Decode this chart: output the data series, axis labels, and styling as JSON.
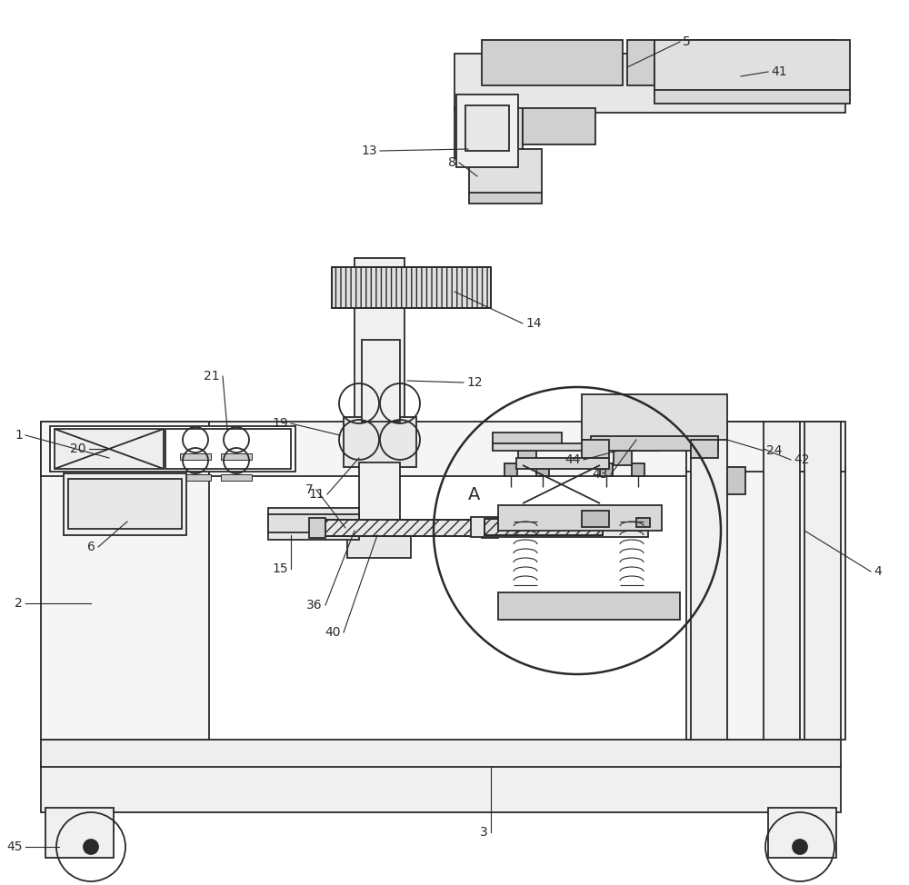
{
  "bg_color": "#ffffff",
  "lc": "#2a2a2a",
  "lw": 1.3,
  "lw_thin": 0.8,
  "lw_thick": 1.8
}
